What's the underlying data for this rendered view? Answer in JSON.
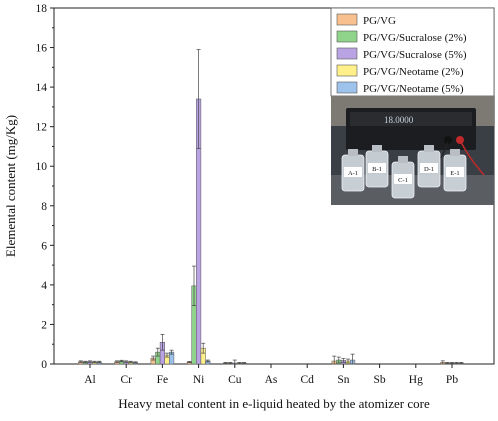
{
  "chart_data": {
    "type": "bar",
    "xlabel": "Heavy metal content in e-liquid heated by the atomizer core",
    "ylabel": "Elemental content (mg/Kg)",
    "ylim": [
      0,
      18
    ],
    "yticks": [
      0,
      2,
      4,
      6,
      8,
      10,
      12,
      14,
      16,
      18
    ],
    "grid": false,
    "legend_position": "top-right",
    "categories": [
      "Al",
      "Cr",
      "Fe",
      "Ni",
      "Cu",
      "As",
      "Cd",
      "Sn",
      "Sb",
      "Hg",
      "Pb"
    ],
    "series": [
      {
        "name": "PG/VG",
        "color": "#f7c08e",
        "values": [
          0.12,
          0.12,
          0.3,
          0.1,
          0.05,
          0,
          0,
          0.15,
          0,
          0,
          0.08
        ],
        "errors": [
          0.04,
          0.04,
          0.1,
          0.03,
          0.03,
          0,
          0,
          0.25,
          0,
          0,
          0.08
        ]
      },
      {
        "name": "PG/VG/Sucralose (2%)",
        "color": "#8fd48a",
        "values": [
          0.1,
          0.15,
          0.6,
          3.95,
          0.05,
          0,
          0,
          0.2,
          0,
          0,
          0.05
        ],
        "errors": [
          0.04,
          0.04,
          0.2,
          1.0,
          0.03,
          0,
          0,
          0.15,
          0,
          0,
          0.03
        ]
      },
      {
        "name": "PG/VG/Sucralose (5%)",
        "color": "#b9a3e3",
        "values": [
          0.12,
          0.12,
          1.1,
          13.4,
          0.05,
          0,
          0,
          0.18,
          0,
          0,
          0.05
        ],
        "errors": [
          0.04,
          0.04,
          0.4,
          2.5,
          0.15,
          0,
          0,
          0.1,
          0,
          0,
          0.03
        ]
      },
      {
        "name": "PG/VG/Neotame (2%)",
        "color": "#fff08a",
        "values": [
          0.1,
          0.1,
          0.45,
          0.8,
          0.05,
          0,
          0,
          0.15,
          0,
          0,
          0.05
        ],
        "errors": [
          0.04,
          0.04,
          0.1,
          0.25,
          0.03,
          0,
          0,
          0.1,
          0,
          0,
          0.03
        ]
      },
      {
        "name": "PG/VG/Neotame (5%)",
        "color": "#9dc3ec",
        "values": [
          0.1,
          0.08,
          0.6,
          0.15,
          0.05,
          0,
          0,
          0.2,
          0,
          0,
          0.05
        ],
        "errors": [
          0.04,
          0.03,
          0.1,
          0.05,
          0.03,
          0,
          0,
          0.3,
          0,
          0,
          0.03
        ]
      }
    ]
  },
  "inset_photo": {
    "device_readout": "18.0000",
    "vial_labels": [
      "A-1",
      "B-1",
      "C-1",
      "D-1",
      "E-1"
    ]
  }
}
